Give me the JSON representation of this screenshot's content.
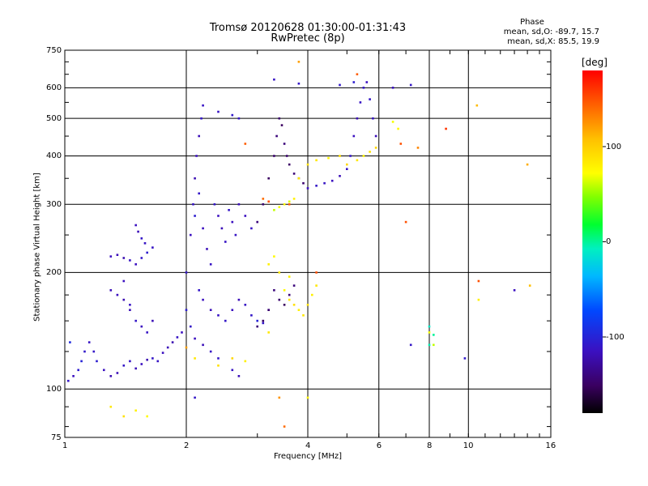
{
  "header": {
    "title_line1": "Tromsø 20120628 01:30:00-01:31:43",
    "title_line2": "RwPretec (8p)",
    "phase_title": "Phase",
    "phase_o": "mean, sd,O: -89.7, 15.7",
    "phase_x": "mean, sd,X:  85.5, 19.9"
  },
  "chart_data": {
    "type": "scatter",
    "title": "Tromsø 20120628 01:30:00-01:31:43",
    "subtitle": "RwPretec (8p)",
    "xlabel": "Frequency [MHz]",
    "ylabel": "Stationary phase Virtual Height [km]",
    "xscale": "log",
    "yscale": "log",
    "xlim": [
      1,
      16
    ],
    "ylim": [
      75,
      750
    ],
    "xticks": [
      1,
      2,
      4,
      6,
      8,
      10,
      16
    ],
    "xtick_labels": [
      "1",
      "2",
      "4",
      "6",
      "8",
      "10",
      "16"
    ],
    "yticks": [
      75,
      100,
      200,
      300,
      400,
      500,
      600,
      750
    ],
    "ytick_labels": [
      "75",
      "100",
      "200",
      "300",
      "400",
      "500",
      "600",
      "750"
    ],
    "grid": true,
    "colorbar": {
      "label": "[deg]",
      "range": [
        -180,
        180
      ],
      "ticks": [
        100,
        0,
        -100
      ],
      "tick_labels": [
        "100",
        "0",
        "-100"
      ],
      "colormap": "rainbow (black-purple-blue-cyan-green-yellow-red)"
    },
    "series": [
      {
        "points": [
          [
            1.02,
            105,
            -110
          ],
          [
            1.05,
            108,
            -115
          ],
          [
            1.08,
            112,
            -105
          ],
          [
            1.1,
            118,
            -100
          ],
          [
            1.12,
            125,
            -108
          ],
          [
            1.15,
            132,
            -112
          ],
          [
            1.18,
            125,
            -110
          ],
          [
            1.2,
            118,
            -105
          ],
          [
            1.25,
            112,
            -115
          ],
          [
            1.3,
            108,
            -120
          ],
          [
            1.35,
            110,
            -118
          ],
          [
            1.4,
            115,
            -110
          ],
          [
            1.45,
            118,
            -112
          ],
          [
            1.5,
            113,
            -118
          ],
          [
            1.55,
            116,
            -115
          ],
          [
            1.6,
            119,
            -120
          ],
          [
            1.65,
            120,
            -110
          ],
          [
            1.7,
            118,
            -112
          ],
          [
            1.75,
            124,
            -115
          ],
          [
            1.8,
            128,
            -118
          ],
          [
            1.85,
            132,
            -120
          ],
          [
            1.9,
            136,
            -112
          ],
          [
            1.95,
            140,
            -115
          ],
          [
            1.03,
            132,
            -95
          ],
          [
            1.3,
            220,
            -115
          ],
          [
            1.35,
            222,
            -118
          ],
          [
            1.4,
            218,
            -120
          ],
          [
            1.45,
            215,
            -112
          ],
          [
            1.5,
            210,
            -115
          ],
          [
            1.55,
            218,
            -110
          ],
          [
            1.6,
            225,
            -105
          ],
          [
            1.65,
            232,
            -112
          ],
          [
            1.5,
            265,
            -115
          ],
          [
            1.52,
            255,
            -118
          ],
          [
            1.55,
            245,
            -110
          ],
          [
            1.58,
            238,
            -112
          ],
          [
            1.3,
            180,
            -118
          ],
          [
            1.35,
            175,
            -115
          ],
          [
            1.4,
            170,
            -120
          ],
          [
            1.45,
            165,
            -112
          ],
          [
            1.4,
            190,
            -115
          ],
          [
            1.45,
            160,
            -118
          ],
          [
            1.5,
            150,
            -110
          ],
          [
            1.55,
            145,
            -115
          ],
          [
            1.6,
            140,
            -112
          ],
          [
            1.65,
            150,
            -118
          ]
        ]
      },
      {
        "points": [
          [
            2.0,
            200,
            -110
          ],
          [
            2.05,
            250,
            -115
          ],
          [
            2.08,
            300,
            -112
          ],
          [
            2.1,
            350,
            -120
          ],
          [
            2.12,
            400,
            -115
          ],
          [
            2.15,
            450,
            -118
          ],
          [
            2.18,
            500,
            -110
          ],
          [
            2.2,
            540,
            -112
          ],
          [
            2.1,
            280,
            -105
          ],
          [
            2.15,
            320,
            -110
          ],
          [
            2.2,
            260,
            -115
          ],
          [
            2.25,
            230,
            -118
          ],
          [
            2.3,
            210,
            -112
          ],
          [
            2.35,
            300,
            -110
          ],
          [
            2.4,
            280,
            -115
          ],
          [
            2.45,
            260,
            -118
          ],
          [
            2.5,
            240,
            -112
          ],
          [
            2.55,
            290,
            -110
          ],
          [
            2.6,
            270,
            -115
          ],
          [
            2.65,
            250,
            -112
          ],
          [
            2.7,
            300,
            -118
          ],
          [
            2.8,
            280,
            -115
          ],
          [
            2.9,
            260,
            -112
          ],
          [
            2.15,
            180,
            -110
          ],
          [
            2.2,
            170,
            -115
          ],
          [
            2.3,
            160,
            -118
          ],
          [
            2.4,
            155,
            -112
          ],
          [
            2.5,
            150,
            -110
          ],
          [
            2.6,
            160,
            -115
          ],
          [
            2.7,
            170,
            -118
          ],
          [
            2.8,
            165,
            -112
          ],
          [
            2.9,
            155,
            -110
          ],
          [
            3.0,
            150,
            -100
          ],
          [
            3.1,
            148,
            -110
          ],
          [
            3.2,
            160,
            -120
          ],
          [
            2.0,
            160,
            -105
          ],
          [
            2.05,
            145,
            -110
          ],
          [
            2.1,
            135,
            -115
          ],
          [
            2.2,
            130,
            -118
          ],
          [
            2.3,
            125,
            -112
          ],
          [
            2.4,
            120,
            -110
          ],
          [
            2.6,
            112,
            -112
          ],
          [
            2.7,
            108,
            -118
          ],
          [
            2.4,
            520,
            -112
          ],
          [
            2.6,
            510,
            -108
          ],
          [
            2.7,
            500,
            -110
          ]
        ]
      },
      {
        "points": [
          [
            3.0,
            270,
            -140
          ],
          [
            3.1,
            300,
            -145
          ],
          [
            3.2,
            350,
            -150
          ],
          [
            3.3,
            400,
            -145
          ],
          [
            3.35,
            450,
            -140
          ],
          [
            3.4,
            500,
            -145
          ],
          [
            3.45,
            480,
            -150
          ],
          [
            3.5,
            430,
            -140
          ],
          [
            3.55,
            400,
            -145
          ],
          [
            3.6,
            380,
            -148
          ],
          [
            3.7,
            360,
            -142
          ],
          [
            3.8,
            350,
            -140
          ],
          [
            3.9,
            340,
            -145
          ],
          [
            3.3,
            180,
            -140
          ],
          [
            3.4,
            170,
            -145
          ],
          [
            3.5,
            165,
            -150
          ],
          [
            3.6,
            175,
            -142
          ],
          [
            3.7,
            185,
            -140
          ],
          [
            3.2,
            160,
            -145
          ],
          [
            3.1,
            150,
            -148
          ],
          [
            3.0,
            145,
            -142
          ]
        ]
      },
      {
        "points": [
          [
            4.0,
            330,
            -115
          ],
          [
            4.2,
            335,
            -110
          ],
          [
            4.4,
            340,
            -112
          ],
          [
            4.6,
            345,
            -115
          ],
          [
            4.8,
            355,
            -118
          ],
          [
            5.0,
            370,
            -112
          ],
          [
            5.1,
            400,
            -110
          ],
          [
            5.2,
            450,
            -115
          ],
          [
            5.3,
            500,
            -118
          ],
          [
            5.4,
            550,
            -112
          ],
          [
            5.5,
            600,
            -110
          ],
          [
            5.6,
            620,
            -115
          ],
          [
            5.7,
            560,
            -110
          ],
          [
            5.8,
            500,
            -112
          ],
          [
            5.9,
            450,
            -118
          ],
          [
            5.2,
            620,
            -105
          ],
          [
            4.8,
            610,
            -108
          ],
          [
            3.8,
            615,
            -110
          ],
          [
            3.3,
            630,
            -112
          ],
          [
            6.5,
            600,
            -115
          ],
          [
            7.2,
            610,
            -110
          ]
        ]
      },
      {
        "points": [
          [
            3.3,
            290,
            60
          ],
          [
            3.4,
            295,
            70
          ],
          [
            3.5,
            300,
            75
          ],
          [
            3.6,
            305,
            65
          ],
          [
            3.7,
            310,
            80
          ],
          [
            3.8,
            350,
            85
          ],
          [
            4.0,
            380,
            90
          ],
          [
            4.2,
            390,
            85
          ],
          [
            4.5,
            395,
            80
          ],
          [
            4.8,
            400,
            90
          ],
          [
            5.0,
            380,
            95
          ],
          [
            5.3,
            390,
            85
          ],
          [
            5.5,
            400,
            80
          ],
          [
            5.7,
            410,
            90
          ],
          [
            5.9,
            420,
            95
          ],
          [
            3.5,
            180,
            75
          ],
          [
            3.6,
            170,
            85
          ],
          [
            3.7,
            165,
            90
          ],
          [
            3.8,
            160,
            80
          ],
          [
            3.9,
            155,
            85
          ],
          [
            4.0,
            165,
            90
          ],
          [
            4.1,
            175,
            80
          ],
          [
            4.2,
            185,
            85
          ],
          [
            3.2,
            210,
            80
          ],
          [
            3.3,
            220,
            75
          ],
          [
            3.4,
            200,
            85
          ],
          [
            3.6,
            195,
            80
          ],
          [
            6.5,
            490,
            70
          ],
          [
            6.7,
            470,
            75
          ]
        ]
      },
      {
        "points": [
          [
            3.1,
            310,
            140
          ],
          [
            3.2,
            305,
            150
          ],
          [
            3.6,
            300,
            145
          ],
          [
            4.2,
            200,
            150
          ],
          [
            2.8,
            430,
            145
          ],
          [
            3.8,
            700,
            120
          ],
          [
            5.3,
            650,
            145
          ],
          [
            6.8,
            430,
            150
          ],
          [
            7.0,
            270,
            150
          ],
          [
            7.5,
            420,
            130
          ],
          [
            8.8,
            470,
            160
          ],
          [
            10.5,
            540,
            110
          ],
          [
            10.6,
            190,
            150
          ],
          [
            14.0,
            380,
            115
          ],
          [
            14.2,
            185,
            108
          ],
          [
            3.5,
            80,
            140
          ],
          [
            3.4,
            95,
            125
          ],
          [
            2.0,
            128,
            120
          ]
        ]
      },
      {
        "points": [
          [
            1.3,
            90,
            85
          ],
          [
            1.4,
            85,
            90
          ],
          [
            1.5,
            88,
            80
          ],
          [
            1.6,
            85,
            75
          ],
          [
            2.1,
            120,
            85
          ],
          [
            2.4,
            115,
            90
          ],
          [
            2.6,
            120,
            95
          ],
          [
            2.8,
            118,
            80
          ],
          [
            3.2,
            140,
            85
          ],
          [
            4.0,
            95,
            80
          ],
          [
            10.6,
            170,
            80
          ],
          [
            8.0,
            140,
            70
          ],
          [
            8.2,
            130,
            60
          ]
        ]
      },
      {
        "points": [
          [
            8.0,
            130,
            -5
          ],
          [
            8.2,
            138,
            0
          ],
          [
            8.0,
            145,
            -10
          ],
          [
            7.2,
            130,
            -110
          ],
          [
            9.8,
            120,
            -108
          ],
          [
            13.0,
            180,
            -115
          ],
          [
            2.1,
            95,
            -110
          ]
        ]
      }
    ]
  }
}
